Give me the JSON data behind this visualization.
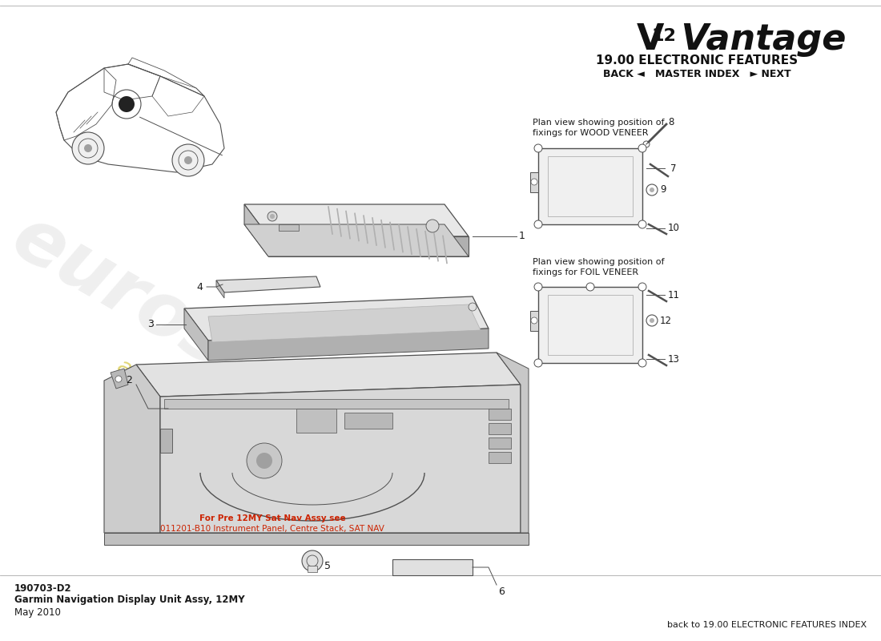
{
  "bg_color": "#ffffff",
  "title_section": "19.00 ELECTRONIC FEATURES",
  "nav_text": "BACK ◄   MASTER INDEX   ► NEXT",
  "wood_veneer_label": "Plan view showing position of\nfixings for WOOD VENEER",
  "foil_veneer_label": "Plan view showing position of\nfixings for FOIL VENEER",
  "bottom_left_note_line1": "For Pre 12MY Sat Nav Assy see",
  "bottom_left_note_line2": "011201-B10 Instrument Panel, Centre Stack, SAT NAV",
  "drawing_number": "190703-D2",
  "drawing_title": "Garmin Navigation Display Unit Assy, 12MY",
  "drawing_date": "May 2010",
  "back_text": "back to 19.00 ELECTRONIC FEATURES INDEX",
  "watermark_color": "#d0d0d0",
  "accent_color": "#c8b400",
  "text_color": "#1a1a1a",
  "line_color": "#505050",
  "light_gray": "#d8d8d8",
  "medium_gray": "#b0b0b0",
  "dark_gray": "#888888",
  "face_color": "#ececec",
  "shadow_color": "#c0c0c0"
}
